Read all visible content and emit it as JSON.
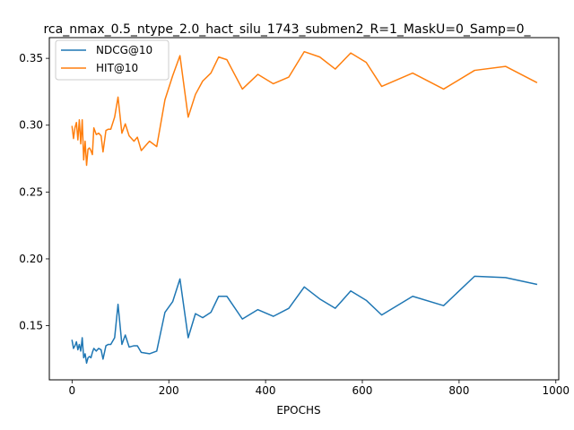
{
  "chart_data": {
    "type": "line",
    "title": "rca_nmax_0.5_ntype_2.0_hact_silu_1743_submen2_R=1_MaskU=0_Samp=0_",
    "xlabel": "EPOCHS",
    "ylabel": "",
    "xlim": [
      -47,
      1006
    ],
    "ylim": [
      0.1095,
      0.3655
    ],
    "xticks": [
      0,
      200,
      400,
      600,
      800,
      1000
    ],
    "yticks": [
      0.15,
      0.2,
      0.25,
      0.3,
      0.35
    ],
    "ytick_labels": [
      "0.15",
      "0.20",
      "0.25",
      "0.30",
      "0.35"
    ],
    "legend_position": "upper-left",
    "grid": false,
    "series": [
      {
        "name": "NDCG@10",
        "color": "#1f77b4",
        "points": [
          [
            0,
            0.139
          ],
          [
            3,
            0.133
          ],
          [
            6,
            0.135
          ],
          [
            9,
            0.138
          ],
          [
            12,
            0.132
          ],
          [
            15,
            0.136
          ],
          [
            18,
            0.131
          ],
          [
            21,
            0.141
          ],
          [
            24,
            0.126
          ],
          [
            27,
            0.129
          ],
          [
            30,
            0.122
          ],
          [
            33,
            0.126
          ],
          [
            36,
            0.127
          ],
          [
            39,
            0.126
          ],
          [
            42,
            0.13
          ],
          [
            45,
            0.133
          ],
          [
            50,
            0.131
          ],
          [
            55,
            0.133
          ],
          [
            60,
            0.132
          ],
          [
            64,
            0.125
          ],
          [
            70,
            0.135
          ],
          [
            75,
            0.136
          ],
          [
            80,
            0.136
          ],
          [
            88,
            0.141
          ],
          [
            95,
            0.166
          ],
          [
            103,
            0.136
          ],
          [
            110,
            0.143
          ],
          [
            118,
            0.134
          ],
          [
            128,
            0.135
          ],
          [
            135,
            0.135
          ],
          [
            143,
            0.13
          ],
          [
            160,
            0.129
          ],
          [
            175,
            0.131
          ],
          [
            192,
            0.16
          ],
          [
            208,
            0.168
          ],
          [
            223,
            0.185
          ],
          [
            240,
            0.141
          ],
          [
            255,
            0.159
          ],
          [
            270,
            0.156
          ],
          [
            287,
            0.16
          ],
          [
            303,
            0.172
          ],
          [
            320,
            0.172
          ],
          [
            352,
            0.155
          ],
          [
            384,
            0.162
          ],
          [
            416,
            0.157
          ],
          [
            448,
            0.163
          ],
          [
            480,
            0.179
          ],
          [
            512,
            0.17
          ],
          [
            544,
            0.163
          ],
          [
            576,
            0.176
          ],
          [
            608,
            0.169
          ],
          [
            640,
            0.158
          ],
          [
            704,
            0.172
          ],
          [
            768,
            0.165
          ],
          [
            832,
            0.187
          ],
          [
            896,
            0.186
          ],
          [
            960,
            0.181
          ]
        ]
      },
      {
        "name": "HIT@10",
        "color": "#ff7f0e",
        "points": [
          [
            0,
            0.299
          ],
          [
            3,
            0.29
          ],
          [
            6,
            0.298
          ],
          [
            9,
            0.302
          ],
          [
            12,
            0.289
          ],
          [
            15,
            0.304
          ],
          [
            18,
            0.286
          ],
          [
            21,
            0.304
          ],
          [
            24,
            0.274
          ],
          [
            27,
            0.288
          ],
          [
            30,
            0.27
          ],
          [
            33,
            0.282
          ],
          [
            36,
            0.283
          ],
          [
            39,
            0.281
          ],
          [
            42,
            0.278
          ],
          [
            45,
            0.298
          ],
          [
            50,
            0.293
          ],
          [
            55,
            0.294
          ],
          [
            60,
            0.292
          ],
          [
            64,
            0.28
          ],
          [
            70,
            0.296
          ],
          [
            75,
            0.297
          ],
          [
            80,
            0.297
          ],
          [
            88,
            0.306
          ],
          [
            95,
            0.321
          ],
          [
            103,
            0.294
          ],
          [
            110,
            0.301
          ],
          [
            118,
            0.292
          ],
          [
            128,
            0.288
          ],
          [
            135,
            0.291
          ],
          [
            143,
            0.281
          ],
          [
            160,
            0.288
          ],
          [
            175,
            0.284
          ],
          [
            192,
            0.319
          ],
          [
            208,
            0.337
          ],
          [
            223,
            0.352
          ],
          [
            240,
            0.306
          ],
          [
            255,
            0.323
          ],
          [
            270,
            0.333
          ],
          [
            287,
            0.339
          ],
          [
            303,
            0.351
          ],
          [
            320,
            0.349
          ],
          [
            352,
            0.327
          ],
          [
            384,
            0.338
          ],
          [
            416,
            0.331
          ],
          [
            448,
            0.336
          ],
          [
            480,
            0.355
          ],
          [
            512,
            0.351
          ],
          [
            544,
            0.342
          ],
          [
            576,
            0.354
          ],
          [
            608,
            0.347
          ],
          [
            640,
            0.329
          ],
          [
            704,
            0.339
          ],
          [
            768,
            0.327
          ],
          [
            832,
            0.341
          ],
          [
            896,
            0.344
          ],
          [
            960,
            0.332
          ]
        ]
      }
    ]
  }
}
